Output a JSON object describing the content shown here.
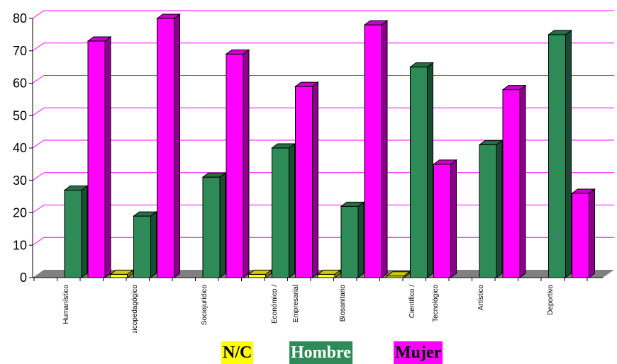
{
  "chart_data": {
    "type": "bar",
    "categories": [
      "Humanístico",
      "Psicopedagógico",
      "Sociojurídico",
      "Económico / Empresarial",
      "Biosanitario",
      "Científico / Tecnológico",
      "Artístico",
      "Deportivo"
    ],
    "category_labels": [
      [
        "Humanístico"
      ],
      [
        "Psicopedagógico"
      ],
      [
        "Sociojurídico"
      ],
      [
        "Económico /",
        "Empresarial"
      ],
      [
        "Biosanitario"
      ],
      [
        "Científico /",
        "Tecnológico"
      ],
      [
        "Artístico"
      ],
      [
        "Deportivo"
      ]
    ],
    "series": [
      {
        "name": "N/C",
        "color": "#ffff00",
        "values": [
          0,
          1,
          0,
          1,
          1,
          0.5,
          0,
          0
        ]
      },
      {
        "name": "Hombre",
        "color": "#2e8b57",
        "values": [
          27,
          19,
          31,
          40,
          22,
          65,
          41,
          75
        ]
      },
      {
        "name": "Mujer",
        "color": "#ff00ff",
        "values": [
          73,
          80,
          69,
          59,
          78,
          35,
          58,
          26
        ]
      }
    ],
    "ylim": [
      0,
      80
    ],
    "yticks": [
      0,
      10,
      20,
      30,
      40,
      50,
      60,
      70,
      80
    ],
    "grid": true,
    "grid_color": "#ff00ff",
    "floor_color": "#808080",
    "legend_position": "bottom",
    "title": "",
    "xlabel": "",
    "ylabel": ""
  }
}
